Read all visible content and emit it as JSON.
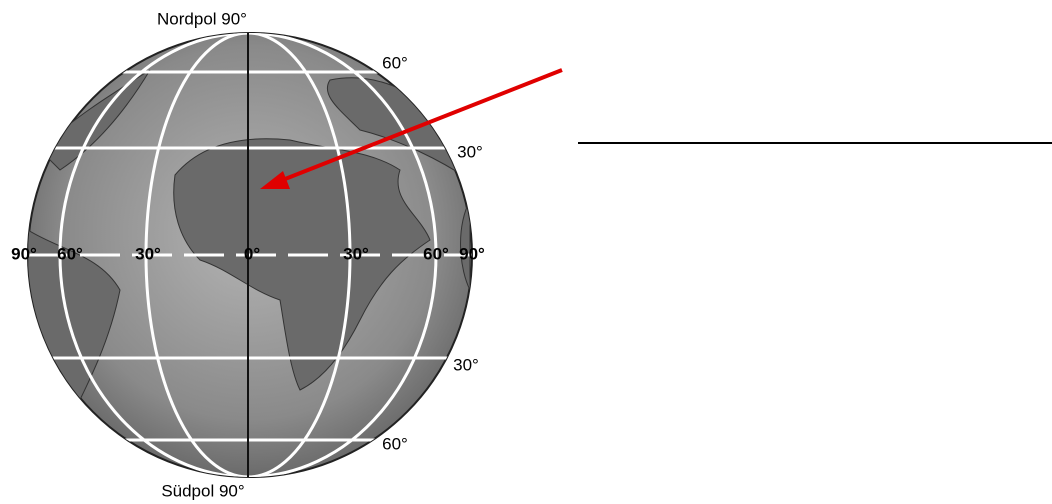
{
  "labels": [
    "Nordpol 90°",
    "Südpol 90°",
    "60°",
    "30°",
    "30°",
    "60°",
    "90°",
    "60°",
    "30°",
    "0°",
    "30°",
    "60°",
    "90°"
  ]
}
